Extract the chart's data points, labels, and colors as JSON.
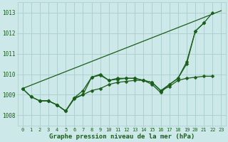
{
  "xlabel": "Graphe pression niveau de la mer (hPa)",
  "bg_color": "#cce8e8",
  "grid_color": "#aacccc",
  "line_color": "#1a5e1a",
  "xlim": [
    -0.5,
    23.5
  ],
  "ylim": [
    1007.5,
    1013.5
  ],
  "yticks": [
    1008,
    1009,
    1010,
    1011,
    1012,
    1013
  ],
  "xticks": [
    0,
    1,
    2,
    3,
    4,
    5,
    6,
    7,
    8,
    9,
    10,
    11,
    12,
    13,
    14,
    15,
    16,
    17,
    18,
    19,
    20,
    21,
    22,
    23
  ],
  "series": [
    [
      0,
      1009.3
    ],
    [
      23,
      1013.1
    ],
    [
      0,
      1009.3,
      1,
      1008.9,
      2,
      1008.7,
      3,
      1008.7,
      4,
      1008.5,
      5,
      1008.2,
      6,
      1008.85,
      7,
      1009.2,
      8,
      1009.85,
      9,
      1010.0,
      10,
      1009.7,
      11,
      1009.75,
      12,
      1009.8,
      13,
      1009.8,
      14,
      1009.7,
      15,
      1009.6,
      16,
      1009.2,
      17,
      1009.5,
      18,
      1009.8,
      19,
      1010.6,
      20,
      1012.1,
      21,
      1012.5,
      22,
      1013.0
    ],
    [
      2,
      1008.7,
      3,
      1008.7,
      4,
      1008.5,
      5,
      1008.2,
      6,
      1008.8,
      7,
      1009.0,
      8,
      1009.85,
      9,
      1009.95,
      10,
      1009.7,
      11,
      1009.8,
      12,
      1009.8,
      13,
      1009.8,
      14,
      1009.7,
      15,
      1009.5,
      16,
      1009.1,
      17,
      1009.5,
      18,
      1009.8,
      19,
      1010.5,
      20,
      1012.1,
      21,
      1012.5
    ],
    [
      0,
      1009.3,
      1,
      1008.9,
      2,
      1008.7,
      3,
      1008.7,
      4,
      1008.5,
      5,
      1008.2,
      6,
      1008.85,
      7,
      1009.0,
      8,
      1009.2,
      9,
      1009.3,
      10,
      1009.5,
      11,
      1009.6,
      12,
      1009.65,
      13,
      1009.7,
      14,
      1009.7,
      15,
      1009.6,
      16,
      1009.2,
      17,
      1009.4,
      18,
      1009.7,
      19,
      1009.8,
      20,
      1009.85,
      21,
      1009.9,
      22,
      1009.9
    ]
  ],
  "marker": "D",
  "markersize": 2.5,
  "linewidth": 0.9
}
